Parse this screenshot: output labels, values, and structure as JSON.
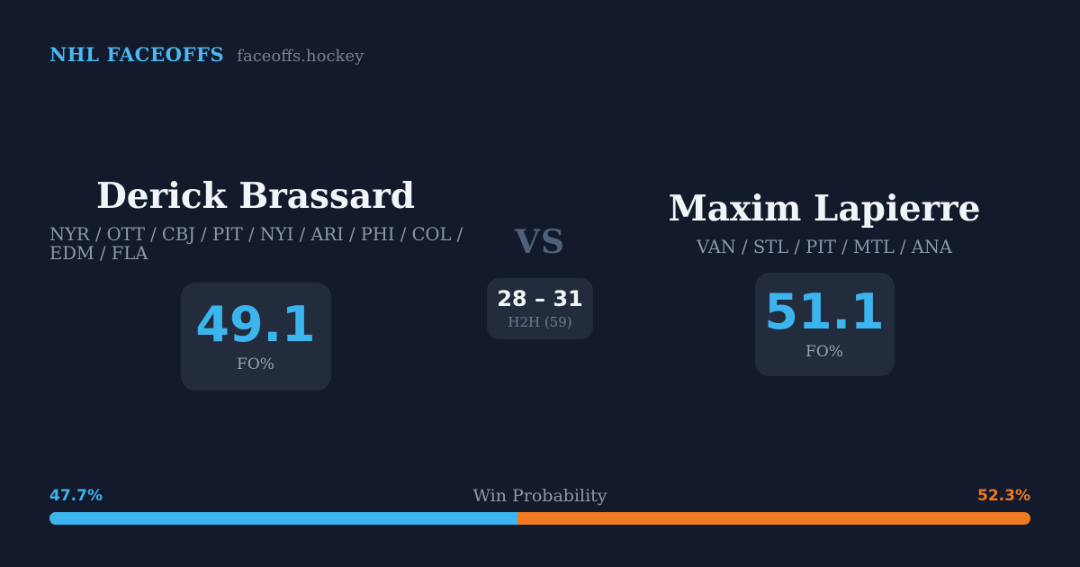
{
  "colors": {
    "background": "#131a2b",
    "card": "#222c3c",
    "accent_blue": "#3cb5ef",
    "accent_orange": "#ef7a1f",
    "text_white": "#f2f5f8",
    "text_gray": "#8b99ad",
    "text_muted": "#6e7c90"
  },
  "header": {
    "brand": "NHL FACEOFFS",
    "site": "faceoffs.hockey"
  },
  "players": [
    {
      "name": "Derick Brassard",
      "teams_lines": [
        "NYR / OTT / CBJ / PIT / NYI / ARI / PHI / COL /",
        "EDM / FLA"
      ],
      "fo_pct": "49.1",
      "fo_label": "FO%",
      "win_probability": "47.7%"
    },
    {
      "name": "Maxim Lapierre",
      "teams_lines": [
        "VAN / STL / PIT / MTL / ANA"
      ],
      "fo_pct": "51.1",
      "fo_label": "FO%",
      "win_probability": "52.3%"
    }
  ],
  "matchup": {
    "vs_label": "VS",
    "h2h_score": "28 – 31",
    "h2h_label": "H2H (59)"
  },
  "win_probability": {
    "label": "Win Probability",
    "left_pct": 47.7,
    "right_pct": 52.3
  }
}
